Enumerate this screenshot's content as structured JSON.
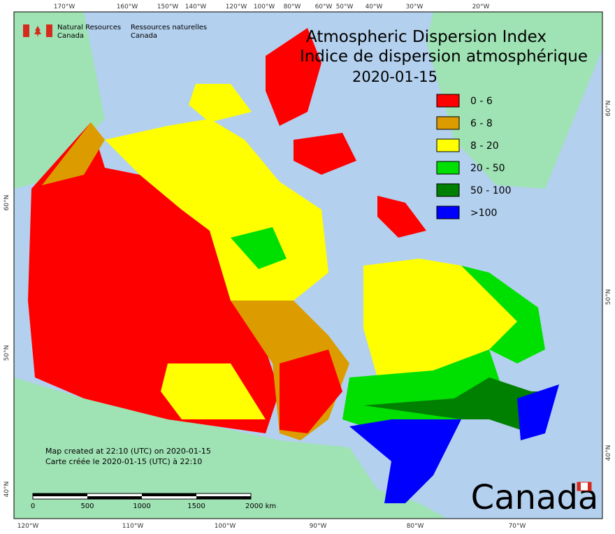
{
  "header": {
    "org_en": [
      "Natural Resources",
      "Canada"
    ],
    "org_fr": [
      "Ressources naturelles",
      "Canada"
    ]
  },
  "title": [
    "Atmospheric Dispersion Index",
    "Indice de dispersion atmosphérique"
  ],
  "date": "2020-01-15",
  "legend": [
    {
      "label": "0 - 6",
      "color": "#ff0000"
    },
    {
      "label": "6 - 8",
      "color": "#dc9c00"
    },
    {
      "label": "8 - 20",
      "color": "#ffff00"
    },
    {
      "label": "20 - 50",
      "color": "#00e000"
    },
    {
      "label": "50 - 100",
      "color": "#008000"
    },
    {
      "label": ">100",
      "color": "#0000ff"
    }
  ],
  "top_labels": [
    "170°W",
    "160°W",
    "150°W",
    "140°W",
    "120°W",
    "100°W",
    "80°W",
    "60°W",
    "50°W",
    "40°W",
    "30°W",
    "20°W"
  ],
  "bottom_labels": [
    "120°W",
    "110°W",
    "100°W",
    "90°W",
    "80°W",
    "70°W"
  ],
  "left_labels": [
    "60°N",
    "50°N",
    "40°N"
  ],
  "right_labels": [
    "60°N",
    "50°N",
    "40°N"
  ],
  "footer": [
    "Map created at 22:10 (UTC) on 2020-01-15",
    "Carte créée le 2020-01-15 (UTC) à 22:10"
  ],
  "scale_labels": [
    "0",
    "500",
    "1000",
    "1500",
    "2000 km"
  ],
  "wordmark": "Canada"
}
